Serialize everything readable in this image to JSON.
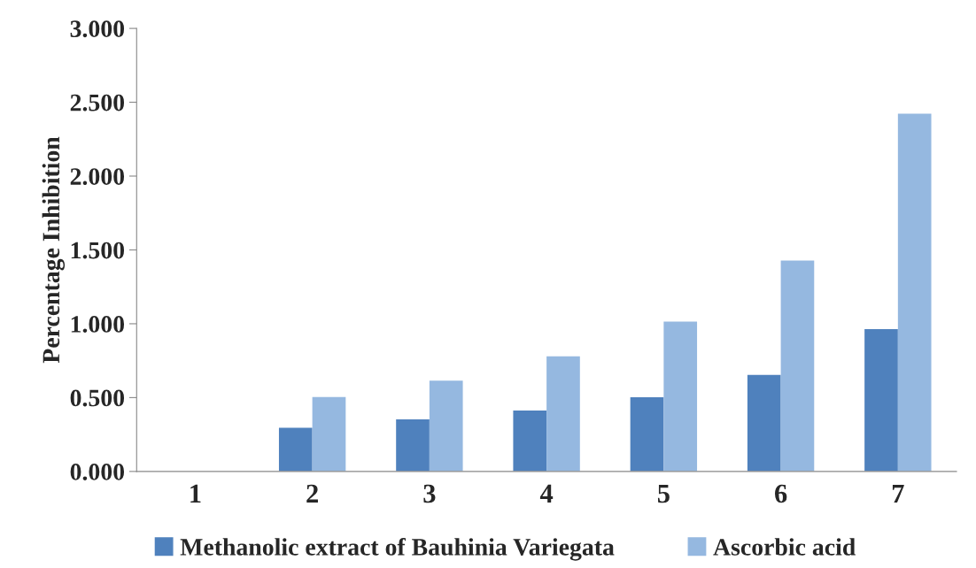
{
  "chart_data": {
    "type": "bar",
    "ylabel": "Percentage Inhibition",
    "categories": [
      "1",
      "2",
      "3",
      "4",
      "5",
      "6",
      "7"
    ],
    "series": [
      {
        "name": "Methanolic extract of Bauhinia Variegata",
        "color": "#4f81bd",
        "values": [
          0,
          0.295,
          0.352,
          0.412,
          0.502,
          0.654,
          0.964
        ]
      },
      {
        "name": "Ascorbic acid",
        "color": "#95b8e0",
        "values": [
          0,
          0.504,
          0.614,
          0.78,
          1.014,
          1.428,
          2.422
        ]
      }
    ],
    "ylim": [
      0,
      3
    ],
    "yticks": [
      {
        "value": 0,
        "label": "0.000"
      },
      {
        "value": 0.5,
        "label": "0.500"
      },
      {
        "value": 1,
        "label": "1.000"
      },
      {
        "value": 1.5,
        "label": "1.500"
      },
      {
        "value": 2,
        "label": "2.000"
      },
      {
        "value": 2.5,
        "label": "2.500"
      },
      {
        "value": 3,
        "label": "3.000"
      }
    ],
    "legend": "bottom"
  }
}
